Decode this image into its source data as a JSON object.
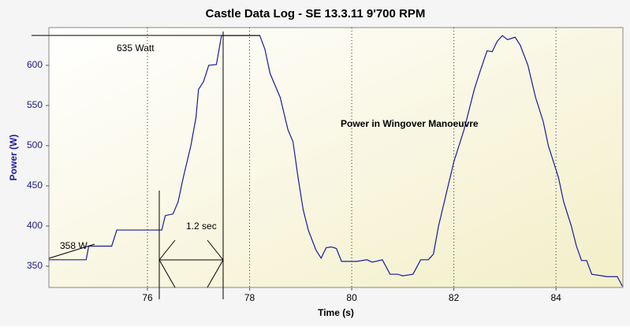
{
  "chart_data": {
    "type": "line",
    "title": "Castle Data Log - SE 13.3.11 9'700 RPM",
    "x_label": "Time (s)",
    "y_label": "Power (W)",
    "x": [
      74.07,
      74.8,
      74.85,
      75.3,
      75.4,
      76.28,
      76.35,
      76.5,
      76.6,
      76.7,
      76.85,
      76.95,
      77.0,
      77.1,
      77.2,
      77.35,
      77.45,
      78.2,
      78.3,
      78.4,
      78.6,
      78.75,
      78.85,
      78.95,
      79.05,
      79.15,
      79.3,
      79.4,
      79.5,
      79.6,
      79.7,
      79.8,
      80.1,
      80.3,
      80.4,
      80.6,
      80.75,
      80.9,
      81.0,
      81.2,
      81.35,
      81.5,
      81.6,
      81.7,
      81.85,
      82.0,
      82.2,
      82.4,
      82.5,
      82.65,
      82.75,
      82.85,
      82.95,
      83.05,
      83.2,
      83.3,
      83.45,
      83.6,
      83.75,
      83.85,
      83.95,
      84.05,
      84.15,
      84.3,
      84.4,
      84.5,
      84.6,
      84.7,
      85.0,
      85.2,
      85.3
    ],
    "values": [
      358,
      358,
      375,
      375,
      395,
      395,
      413,
      415,
      430,
      460,
      500,
      535,
      570,
      580,
      600,
      601,
      637,
      637,
      620,
      590,
      560,
      520,
      505,
      460,
      420,
      395,
      370,
      360,
      373,
      374,
      372,
      356,
      356,
      358,
      355,
      358,
      340,
      340,
      338,
      340,
      358,
      358,
      365,
      400,
      440,
      480,
      520,
      570,
      590,
      618,
      617,
      630,
      637,
      632,
      635,
      625,
      600,
      560,
      530,
      500,
      480,
      460,
      430,
      400,
      375,
      357,
      357,
      340,
      337,
      337,
      325
    ],
    "color": "#1a1aa0",
    "xlim": [
      74.07,
      85.31
    ],
    "xticks": [
      76,
      78,
      80,
      82,
      84
    ],
    "ylim": [
      323.5,
      647
    ],
    "yticks": [
      350,
      400,
      450,
      500,
      550,
      600
    ],
    "grid": "x",
    "annotations": [
      "635 Watt",
      "358 W",
      "1.2 sec",
      "Power in Wingover Manoeuvre"
    ]
  }
}
